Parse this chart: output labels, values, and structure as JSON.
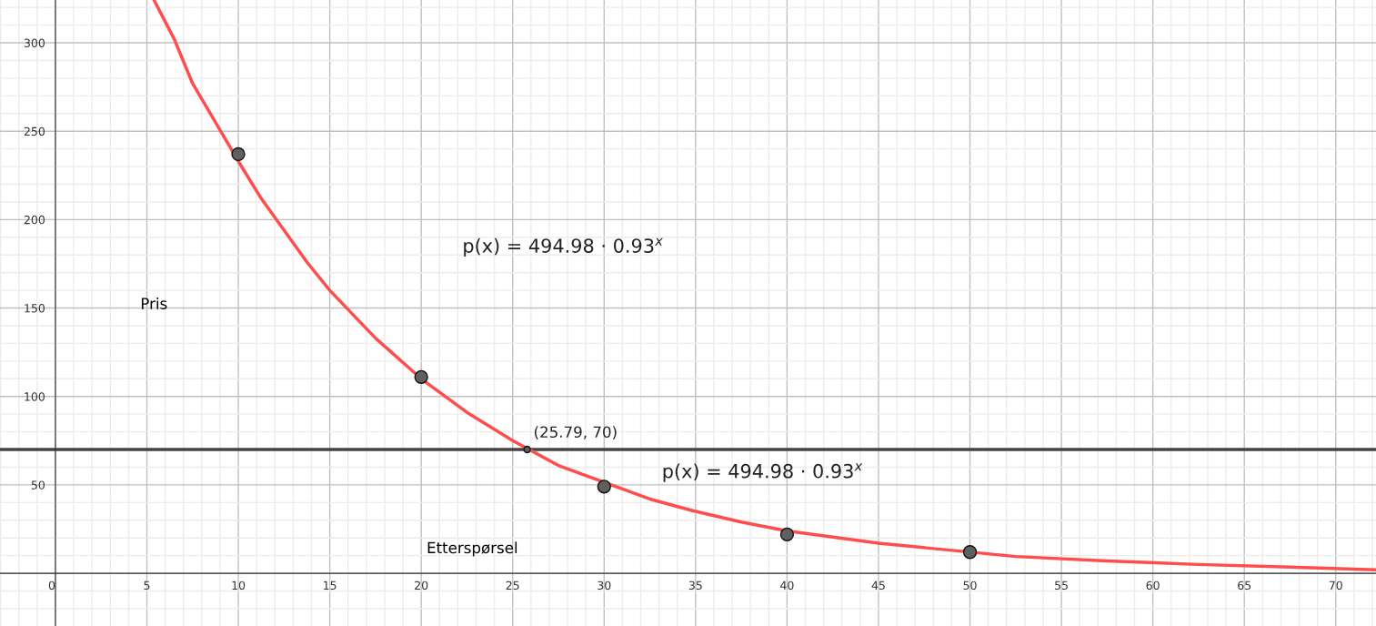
{
  "chart_data": {
    "type": "scatter",
    "xlabel": "Etterspørsel",
    "ylabel": "Pris",
    "xlim": [
      -3.03,
      72.2
    ],
    "ylim": [
      -29.8,
      324.2
    ],
    "xticks": [
      {
        "value": 0,
        "label": "0"
      },
      5,
      10,
      15,
      20,
      25,
      30,
      35,
      40,
      45,
      50,
      55,
      60,
      65,
      70
    ],
    "yticks": [
      {
        "value": 0,
        "label": null
      },
      50,
      100,
      150,
      200,
      250,
      300
    ],
    "grid": true,
    "legend": false,
    "marker": "circle",
    "series": [
      {
        "type": "line",
        "marker": "none",
        "color": "#ff4d4d",
        "x": [
          5.4,
          6.5,
          7.5,
          8.75,
          10,
          11.25,
          12.5,
          13.75,
          15,
          17.5,
          20,
          22.5,
          25,
          27.5,
          32.5,
          35,
          37.5,
          40,
          45,
          52.5,
          57.5,
          62.5,
          67.5,
          72.2
        ],
        "values": [
          324,
          302,
          277,
          255,
          233,
          212,
          194,
          176,
          160,
          133,
          110,
          91,
          75,
          61,
          42,
          35,
          29,
          24,
          17,
          9.5,
          7,
          5,
          3.5,
          2
        ]
      },
      {
        "color": "#606060",
        "x": [
          10,
          20,
          30,
          40,
          50
        ],
        "values": [
          237,
          111,
          49,
          22,
          12
        ]
      },
      {
        "color": "#606060",
        "x": [
          25.79
        ],
        "values": [
          70
        ]
      }
    ],
    "ref_lines": [
      {
        "axis": "y",
        "value": 70,
        "color": "#444444"
      }
    ],
    "annotations": [
      "p(x) = 494.98 · 0.93$^{x}$",
      "p(x) = 494.98 · 0.93$^{x}$",
      {
        "text": "(25.79, 70)",
        "x": 25.79,
        "y": 70
      }
    ]
  }
}
